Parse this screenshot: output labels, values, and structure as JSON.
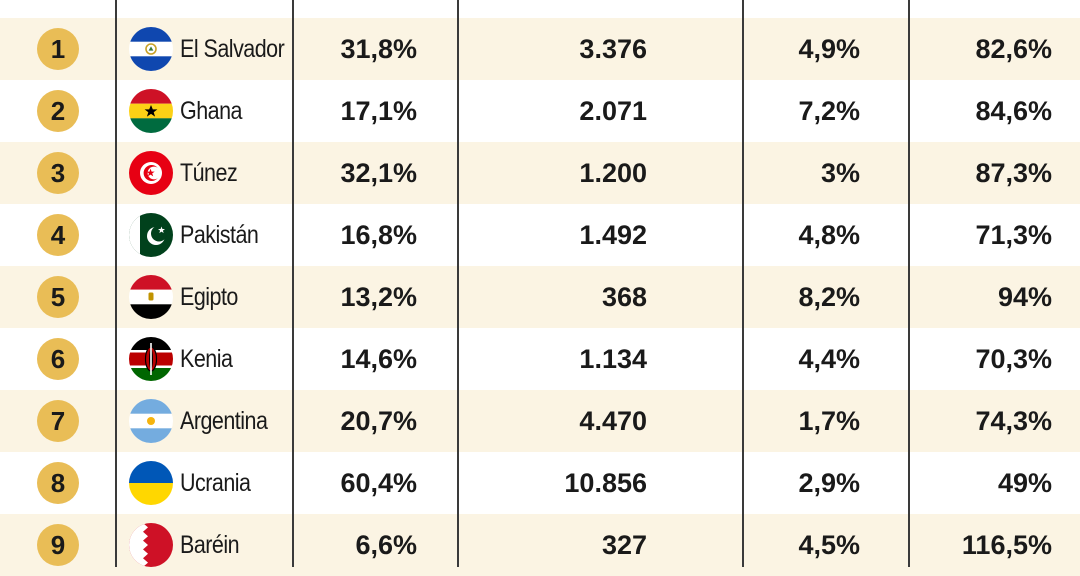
{
  "chart_data": {
    "type": "table",
    "title": "",
    "columns": [
      "",
      "",
      "",
      "",
      "",
      ""
    ],
    "rows": [
      {
        "rank": "1",
        "country": "El Salvador",
        "flag": "el-salvador",
        "col1": "31,8%",
        "col2": "3.376",
        "col3": "4,9%",
        "col4": "82,6%"
      },
      {
        "rank": "2",
        "country": "Ghana",
        "flag": "ghana",
        "col1": "17,1%",
        "col2": "2.071",
        "col3": "7,2%",
        "col4": "84,6%"
      },
      {
        "rank": "3",
        "country": "Túnez",
        "flag": "tunisia",
        "col1": "32,1%",
        "col2": "1.200",
        "col3": "3%",
        "col4": "87,3%"
      },
      {
        "rank": "4",
        "country": "Pakistán",
        "flag": "pakistan",
        "col1": "16,8%",
        "col2": "1.492",
        "col3": "4,8%",
        "col4": "71,3%"
      },
      {
        "rank": "5",
        "country": "Egipto",
        "flag": "egypt",
        "col1": "13,2%",
        "col2": "368",
        "col3": "8,2%",
        "col4": "94%"
      },
      {
        "rank": "6",
        "country": "Kenia",
        "flag": "kenya",
        "col1": "14,6%",
        "col2": "1.134",
        "col3": "4,4%",
        "col4": "70,3%"
      },
      {
        "rank": "7",
        "country": "Argentina",
        "flag": "argentina",
        "col1": "20,7%",
        "col2": "4.470",
        "col3": "1,7%",
        "col4": "74,3%"
      },
      {
        "rank": "8",
        "country": "Ucrania",
        "flag": "ukraine",
        "col1": "60,4%",
        "col2": "10.856",
        "col3": "2,9%",
        "col4": "49%"
      },
      {
        "rank": "9",
        "country": "Baréin",
        "flag": "bahrain",
        "col1": "6,6%",
        "col2": "327",
        "col3": "4,5%",
        "col4": "116,5%"
      }
    ]
  },
  "colors": {
    "row_alt": "#fbf4e3",
    "row_plain": "#ffffff",
    "rank_badge": "#e9bd56",
    "rule": "#3a3a3a",
    "text": "#1a1a1a"
  }
}
